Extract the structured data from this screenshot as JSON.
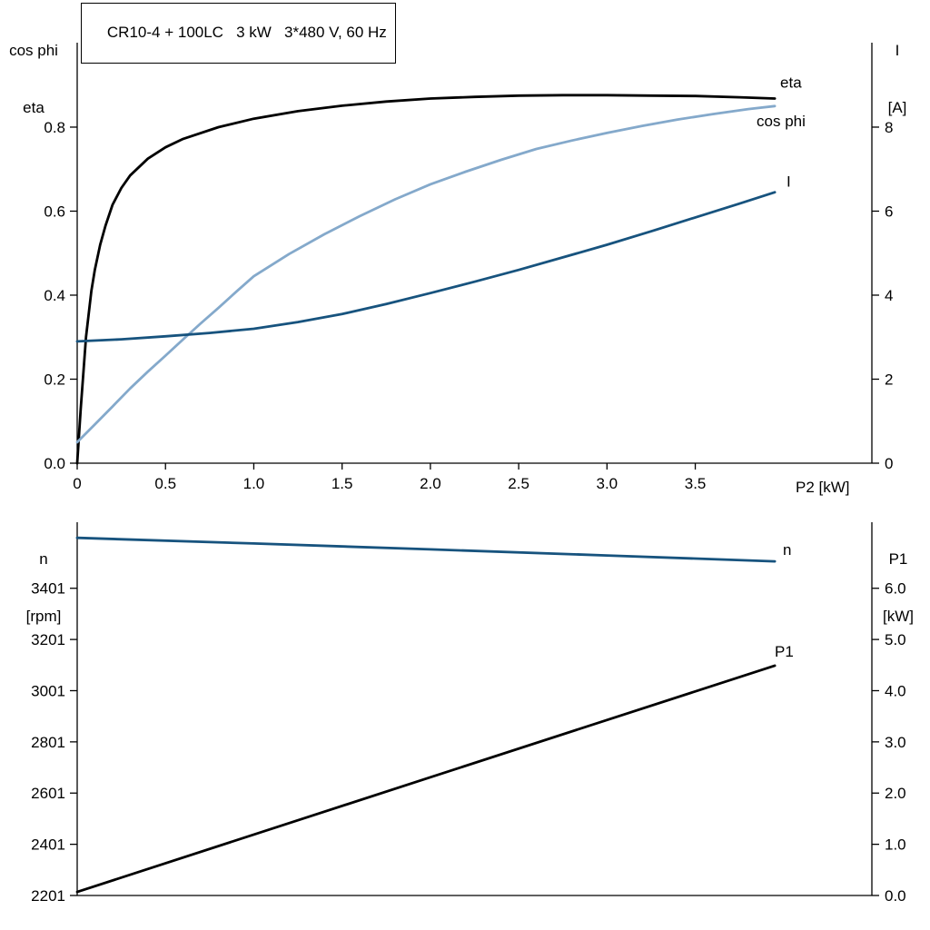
{
  "colors": {
    "black": "#000000",
    "dark_blue": "#17537e",
    "light_blue": "#84a9cb",
    "axis": "#000000",
    "background": "#ffffff"
  },
  "chart_data": [
    {
      "type": "line",
      "title": "CR10-4 + 100LC   3 kW   3*480 V, 60 Hz",
      "xlabel": "P2 [kW]",
      "xlim": [
        0,
        4.5
      ],
      "grid": false,
      "x_ticks": [
        {
          "v": 0,
          "label": "0"
        },
        {
          "v": 0.5,
          "label": "0.5"
        },
        {
          "v": 1.0,
          "label": "1.0"
        },
        {
          "v": 1.5,
          "label": "1.5"
        },
        {
          "v": 2.0,
          "label": "2.0"
        },
        {
          "v": 2.5,
          "label": "2.5"
        },
        {
          "v": 3.0,
          "label": "3.0"
        },
        {
          "v": 3.5,
          "label": "3.5"
        }
      ],
      "left_axis": {
        "title": [
          "cos phi",
          "eta"
        ],
        "lim": [
          0,
          1.001
        ],
        "ticks": [
          {
            "v": 0.0,
            "label": "0.0"
          },
          {
            "v": 0.2,
            "label": "0.2"
          },
          {
            "v": 0.4,
            "label": "0.4"
          },
          {
            "v": 0.6,
            "label": "0.6"
          },
          {
            "v": 0.8,
            "label": "0.8"
          }
        ]
      },
      "right_axis": {
        "title": [
          "I",
          "[A]"
        ],
        "lim": [
          0,
          10.01
        ],
        "ticks": [
          {
            "v": 0,
            "label": "0"
          },
          {
            "v": 2,
            "label": "2"
          },
          {
            "v": 4,
            "label": "4"
          },
          {
            "v": 6,
            "label": "6"
          },
          {
            "v": 8,
            "label": "8"
          }
        ]
      },
      "series": [
        {
          "name": "eta",
          "color": "#000000",
          "axis": "left",
          "points": [
            [
              0,
              0
            ],
            [
              0.02,
              0.13
            ],
            [
              0.05,
              0.3
            ],
            [
              0.08,
              0.41
            ],
            [
              0.1,
              0.46
            ],
            [
              0.13,
              0.52
            ],
            [
              0.16,
              0.565
            ],
            [
              0.2,
              0.615
            ],
            [
              0.25,
              0.655
            ],
            [
              0.3,
              0.685
            ],
            [
              0.4,
              0.725
            ],
            [
              0.5,
              0.752
            ],
            [
              0.6,
              0.772
            ],
            [
              0.8,
              0.8
            ],
            [
              1.0,
              0.82
            ],
            [
              1.25,
              0.838
            ],
            [
              1.5,
              0.851
            ],
            [
              1.75,
              0.861
            ],
            [
              2.0,
              0.868
            ],
            [
              2.25,
              0.872
            ],
            [
              2.5,
              0.875
            ],
            [
              2.75,
              0.876
            ],
            [
              3.0,
              0.876
            ],
            [
              3.25,
              0.875
            ],
            [
              3.5,
              0.874
            ],
            [
              3.75,
              0.871
            ],
            [
              3.95,
              0.868
            ]
          ]
        },
        {
          "name": "cos phi",
          "color": "#84a9cb",
          "axis": "left",
          "points": [
            [
              0,
              0.05
            ],
            [
              0.1,
              0.092
            ],
            [
              0.2,
              0.135
            ],
            [
              0.3,
              0.178
            ],
            [
              0.4,
              0.218
            ],
            [
              0.5,
              0.256
            ],
            [
              0.6,
              0.295
            ],
            [
              0.7,
              0.333
            ],
            [
              0.8,
              0.37
            ],
            [
              0.9,
              0.408
            ],
            [
              1.0,
              0.445
            ],
            [
              1.2,
              0.498
            ],
            [
              1.4,
              0.545
            ],
            [
              1.6,
              0.588
            ],
            [
              1.8,
              0.628
            ],
            [
              2.0,
              0.664
            ],
            [
              2.2,
              0.694
            ],
            [
              2.4,
              0.722
            ],
            [
              2.6,
              0.748
            ],
            [
              2.8,
              0.768
            ],
            [
              3.0,
              0.786
            ],
            [
              3.2,
              0.803
            ],
            [
              3.4,
              0.818
            ],
            [
              3.6,
              0.831
            ],
            [
              3.8,
              0.843
            ],
            [
              3.95,
              0.85
            ]
          ]
        },
        {
          "name": "I",
          "color": "#17537e",
          "axis": "right",
          "points": [
            [
              0,
              2.9
            ],
            [
              0.25,
              2.95
            ],
            [
              0.5,
              3.02
            ],
            [
              0.75,
              3.1
            ],
            [
              1.0,
              3.2
            ],
            [
              1.25,
              3.36
            ],
            [
              1.5,
              3.55
            ],
            [
              1.75,
              3.79
            ],
            [
              2.0,
              4.05
            ],
            [
              2.25,
              4.32
            ],
            [
              2.5,
              4.6
            ],
            [
              2.75,
              4.9
            ],
            [
              3.0,
              5.2
            ],
            [
              3.25,
              5.52
            ],
            [
              3.5,
              5.85
            ],
            [
              3.75,
              6.18
            ],
            [
              3.95,
              6.45
            ]
          ]
        }
      ]
    },
    {
      "type": "line",
      "title": "",
      "xlabel": "",
      "xlim": [
        0,
        4.5
      ],
      "grid": false,
      "x_ticks": [],
      "left_axis": {
        "title": [
          "n",
          "[rpm]"
        ],
        "lim": [
          2201,
          3659
        ],
        "ticks": [
          {
            "v": 2201,
            "label": "2201"
          },
          {
            "v": 2401,
            "label": "2401"
          },
          {
            "v": 2601,
            "label": "2601"
          },
          {
            "v": 2801,
            "label": "2801"
          },
          {
            "v": 3001,
            "label": "3001"
          },
          {
            "v": 3201,
            "label": "3201"
          },
          {
            "v": 3401,
            "label": "3401"
          }
        ]
      },
      "right_axis": {
        "title": [
          "P1",
          "[kW]"
        ],
        "lim": [
          0,
          7.29
        ],
        "ticks": [
          {
            "v": 0,
            "label": "0.0"
          },
          {
            "v": 1,
            "label": "1.0"
          },
          {
            "v": 2,
            "label": "2.0"
          },
          {
            "v": 3,
            "label": "3.0"
          },
          {
            "v": 4,
            "label": "4.0"
          },
          {
            "v": 5,
            "label": "5.0"
          },
          {
            "v": 6,
            "label": "6.0"
          }
        ]
      },
      "series": [
        {
          "name": "n",
          "color": "#17537e",
          "axis": "left",
          "points": [
            [
              0,
              3598
            ],
            [
              1.0,
              3576
            ],
            [
              2.0,
              3553
            ],
            [
              3.0,
              3529
            ],
            [
              3.95,
              3506
            ]
          ]
        },
        {
          "name": "P1",
          "color": "#000000",
          "axis": "right",
          "points": [
            [
              0,
              0.07
            ],
            [
              2.0,
              2.31
            ],
            [
              3.95,
              4.49
            ]
          ]
        }
      ]
    }
  ]
}
